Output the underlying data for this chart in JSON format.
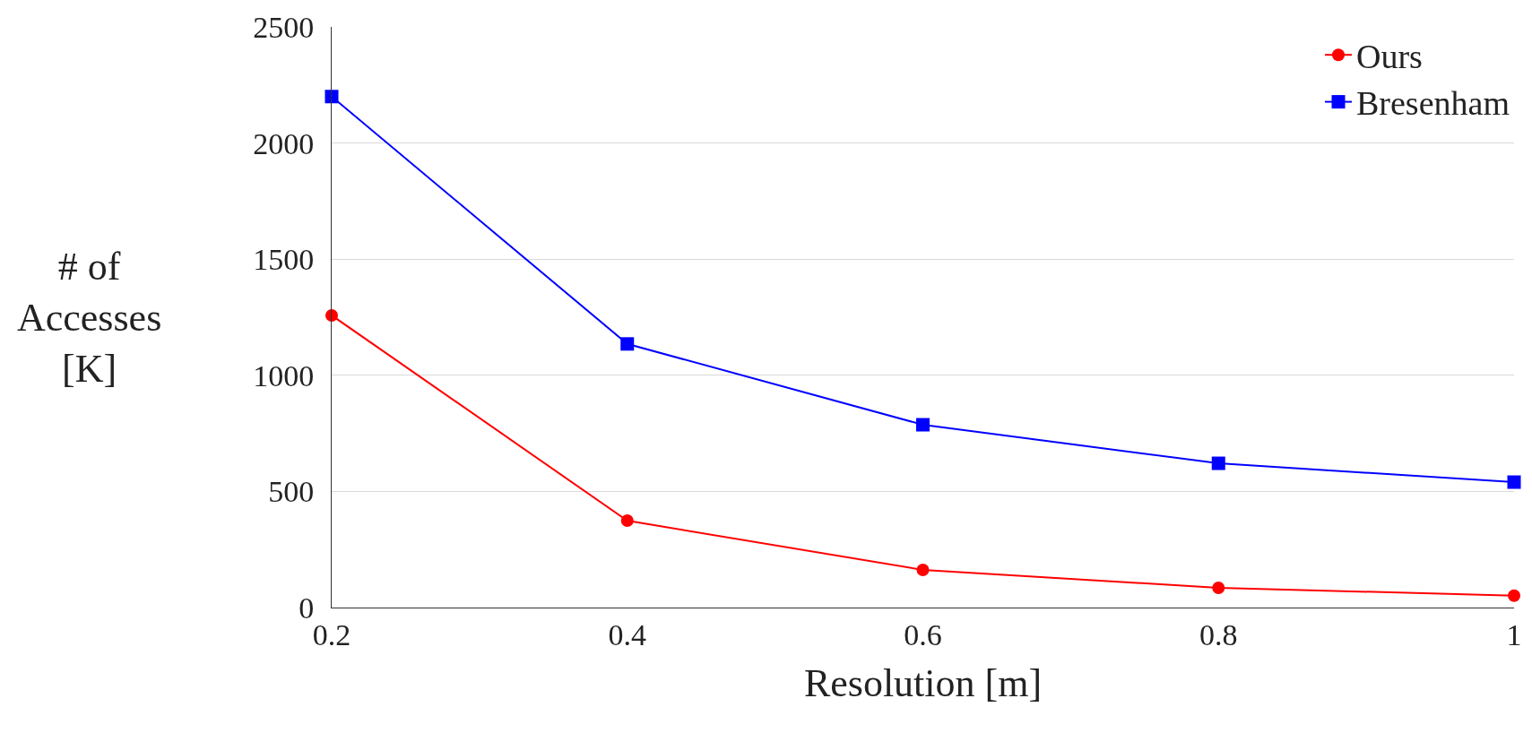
{
  "chart_data": {
    "type": "line",
    "xlabel": "Resolution [m]",
    "ylabel": "# of\nAccesses\n[K]",
    "x": [
      0.2,
      0.4,
      0.6,
      0.8,
      1
    ],
    "series": [
      {
        "name": "Ours",
        "color": "#ff0000",
        "marker": "circle",
        "values": [
          1258,
          374,
          162,
          85,
          51
        ]
      },
      {
        "name": "Bresenham",
        "color": "#0000ff",
        "marker": "square",
        "values": [
          2200,
          1135,
          787,
          621,
          540
        ]
      }
    ],
    "xlim": [
      0.2,
      1
    ],
    "xticks": [
      0.2,
      0.4,
      0.6,
      0.8,
      1
    ],
    "ylim": [
      0,
      2500
    ],
    "yticks": [
      0,
      500,
      1000,
      1500,
      2000,
      2500
    ],
    "grid": "y",
    "legend": "top right",
    "line_style": "solid"
  }
}
